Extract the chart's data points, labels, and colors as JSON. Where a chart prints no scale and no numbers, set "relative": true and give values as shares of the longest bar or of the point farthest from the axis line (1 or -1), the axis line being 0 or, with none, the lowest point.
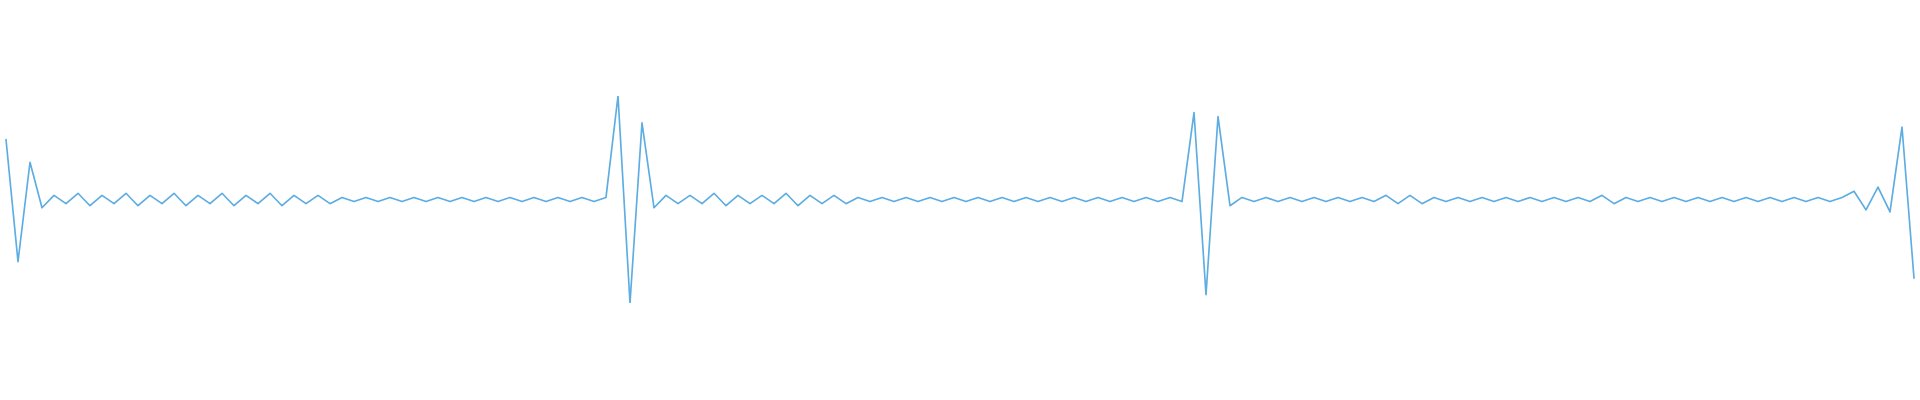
{
  "chart_data": {
    "type": "line",
    "relative": true,
    "line_style": "solid",
    "categories": [
      null,
      null,
      null,
      null,
      null,
      null,
      null,
      null,
      null,
      null,
      null,
      null,
      null,
      null,
      null,
      null,
      null,
      null,
      null,
      null,
      null,
      null,
      null,
      null,
      null,
      null,
      null,
      null,
      null,
      null,
      null,
      null,
      null,
      null,
      null,
      null,
      null,
      null,
      null,
      null,
      null,
      null,
      null,
      null,
      null,
      null,
      null,
      null,
      null,
      null,
      null,
      null,
      null,
      null,
      null,
      null,
      null,
      null,
      null,
      null,
      null,
      null,
      null,
      null,
      null,
      null,
      null,
      null,
      null,
      null,
      null,
      null,
      null,
      null,
      null,
      null,
      null,
      null,
      null,
      null,
      null,
      null,
      null,
      null,
      null,
      null,
      null,
      null,
      null,
      null,
      null,
      null,
      null,
      null,
      null,
      null,
      null,
      null,
      null,
      null,
      null,
      null,
      null,
      null,
      null,
      null,
      null,
      null,
      null,
      null,
      null,
      null,
      null,
      null,
      null,
      null,
      null,
      null,
      null,
      null,
      null,
      null,
      null,
      null,
      null,
      null,
      null,
      null,
      null,
      null,
      null,
      null,
      null,
      null,
      null,
      null,
      null,
      null,
      null,
      null,
      null,
      null,
      null,
      null,
      null,
      null,
      null,
      null,
      null,
      null,
      null,
      null,
      null,
      null,
      null,
      null,
      null,
      null,
      null,
      null
    ],
    "series": [
      {
        "color": "#5dade2",
        "values": [
          0.79,
          0.2,
          0.68,
          0.46,
          0.52,
          0.48,
          0.53,
          0.47,
          0.52,
          0.48,
          0.53,
          0.47,
          0.52,
          0.48,
          0.53,
          0.47,
          0.52,
          0.48,
          0.53,
          0.47,
          0.52,
          0.48,
          0.53,
          0.47,
          0.52,
          0.48,
          0.52,
          0.48,
          0.51,
          0.49,
          0.51,
          0.49,
          0.51,
          0.49,
          0.51,
          0.49,
          0.51,
          0.49,
          0.51,
          0.49,
          0.51,
          0.49,
          0.51,
          0.49,
          0.51,
          0.49,
          0.51,
          0.49,
          0.51,
          0.49,
          0.51,
          1.0,
          0.0,
          0.87,
          0.46,
          0.52,
          0.48,
          0.52,
          0.48,
          0.53,
          0.47,
          0.52,
          0.48,
          0.52,
          0.48,
          0.53,
          0.47,
          0.52,
          0.48,
          0.52,
          0.48,
          0.51,
          0.49,
          0.51,
          0.49,
          0.51,
          0.49,
          0.51,
          0.49,
          0.51,
          0.49,
          0.51,
          0.49,
          0.51,
          0.49,
          0.51,
          0.49,
          0.51,
          0.49,
          0.51,
          0.49,
          0.51,
          0.49,
          0.51,
          0.49,
          0.51,
          0.49,
          0.51,
          0.49,
          0.92,
          0.04,
          0.9,
          0.47,
          0.51,
          0.49,
          0.51,
          0.49,
          0.51,
          0.49,
          0.51,
          0.49,
          0.51,
          0.49,
          0.51,
          0.49,
          0.52,
          0.48,
          0.52,
          0.48,
          0.51,
          0.49,
          0.51,
          0.49,
          0.51,
          0.49,
          0.51,
          0.49,
          0.51,
          0.49,
          0.51,
          0.49,
          0.51,
          0.49,
          0.52,
          0.48,
          0.51,
          0.49,
          0.51,
          0.49,
          0.51,
          0.49,
          0.51,
          0.49,
          0.51,
          0.49,
          0.51,
          0.49,
          0.51,
          0.49,
          0.51,
          0.49,
          0.51,
          0.49,
          0.51,
          0.54,
          0.45,
          0.56,
          0.44,
          0.85,
          0.12
        ]
      }
    ]
  }
}
